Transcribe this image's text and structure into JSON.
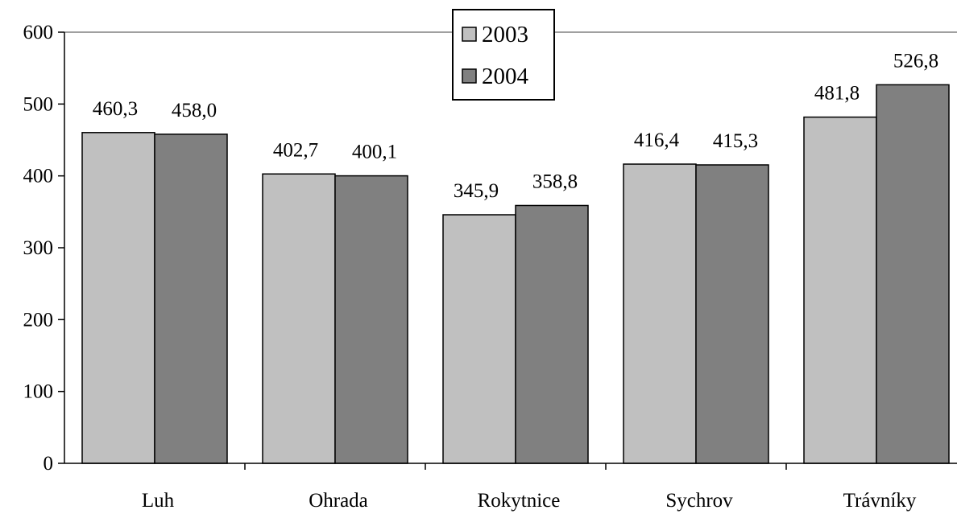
{
  "chart_data": {
    "type": "bar",
    "categories": [
      "Luh",
      "Ohrada",
      "Rokytnice",
      "Sychrov",
      "Trávníky"
    ],
    "series": [
      {
        "name": "2003",
        "values": [
          460.3,
          402.7,
          345.9,
          416.4,
          481.8
        ],
        "labels": [
          "460,3",
          "402,7",
          "345,9",
          "416,4",
          "481,8"
        ],
        "color": "#c0c0c0"
      },
      {
        "name": "2004",
        "values": [
          458.0,
          400.1,
          358.8,
          415.3,
          526.8
        ],
        "labels": [
          "458,0",
          "400,1",
          "358,8",
          "415,3",
          "526,8"
        ],
        "color": "#808080"
      }
    ],
    "ylim": [
      0,
      600
    ],
    "yticks": [
      0,
      100,
      200,
      300,
      400,
      500,
      600
    ],
    "gridline_at_max": true,
    "legend_position": "top-center"
  }
}
